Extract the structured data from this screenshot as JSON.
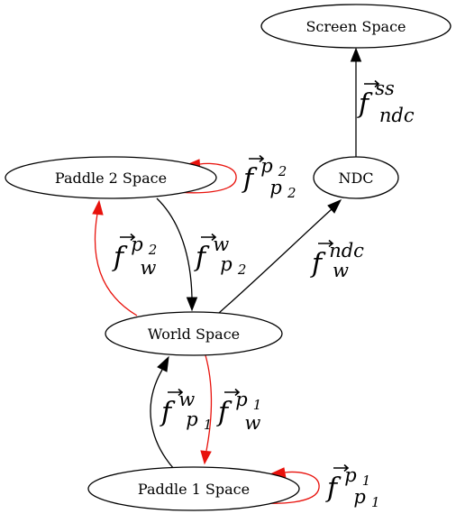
{
  "nodes": {
    "screen_space": "Screen Space",
    "ndc": "NDC",
    "paddle2_space": "Paddle 2 Space",
    "world_space": "World Space",
    "paddle1_space": "Paddle 1 Space"
  },
  "edge_labels": {
    "ndc_to_screen": {
      "base": "f",
      "sup": "ss",
      "sub": "ndc"
    },
    "p2_self": {
      "base": "f",
      "sup": "p",
      "sup_idx": "2",
      "sub": "p",
      "sub_idx": "2"
    },
    "world_to_p2": {
      "base": "f",
      "sup": "p",
      "sup_idx": "2",
      "sub": "w"
    },
    "p2_to_world": {
      "base": "f",
      "sup": "w",
      "sub": "p",
      "sub_idx": "2"
    },
    "world_to_ndc": {
      "base": "f",
      "sup": "ndc",
      "sub": "w"
    },
    "p1_to_world": {
      "base": "f",
      "sup": "w",
      "sub": "p",
      "sub_idx": "1"
    },
    "world_to_p1": {
      "base": "f",
      "sup": "p",
      "sup_idx": "1",
      "sub": "w"
    },
    "p1_self": {
      "base": "f",
      "sup": "p",
      "sup_idx": "1",
      "sub": "p",
      "sub_idx": "1"
    }
  },
  "colors": {
    "black_edge": "#000000",
    "red_edge": "#e8120c"
  }
}
